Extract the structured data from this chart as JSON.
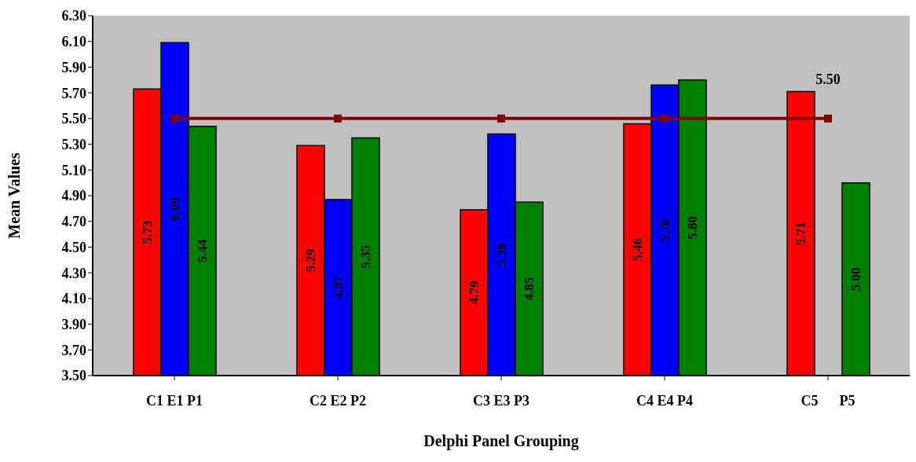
{
  "chart_data": {
    "type": "bar",
    "xlabel": "Delphi Panel Grouping",
    "ylabel": "Mean Values",
    "categories": [
      "C1 E1 P1",
      "C2 E2 P2",
      "C3 E3 P3",
      "C4 E4 P4",
      "C5      P5"
    ],
    "series": [
      {
        "color": "#ff0000",
        "values": [
          5.73,
          5.29,
          4.79,
          5.46,
          5.71
        ],
        "value_labels": [
          "5.73",
          "5.29",
          "4.79",
          "5.46",
          "5.71"
        ]
      },
      {
        "color": "#0000ff",
        "values": [
          6.09,
          4.87,
          5.38,
          5.76,
          null
        ],
        "value_labels": [
          "6.09",
          "4.87",
          "5.38",
          "5.76",
          null
        ]
      },
      {
        "color": "#008000",
        "values": [
          5.44,
          5.35,
          4.85,
          5.8,
          5.0
        ],
        "value_labels": [
          "5.44",
          "5.35",
          "4.85",
          "5.80",
          "5.00"
        ]
      },
      {
        "type": "line",
        "color": "#800000",
        "values": [
          5.5,
          5.5,
          5.5,
          5.5,
          5.5
        ],
        "value_labels": [
          null,
          null,
          null,
          null,
          "5.50"
        ]
      }
    ],
    "marker": "square",
    "line_style": "solid",
    "grid": false,
    "legend": false,
    "ylim": [
      3.5,
      6.3
    ],
    "yticks": [
      {
        "value": 3.5,
        "label": "3.50"
      },
      {
        "value": 3.7,
        "label": "3.70"
      },
      {
        "value": 3.9,
        "label": "3.90"
      },
      {
        "value": 4.1,
        "label": "4.10"
      },
      {
        "value": 4.3,
        "label": "4.30"
      },
      {
        "value": 4.5,
        "label": "4.50"
      },
      {
        "value": 4.7,
        "label": "4.70"
      },
      {
        "value": 4.9,
        "label": "4.90"
      },
      {
        "value": 5.1,
        "label": "5.10"
      },
      {
        "value": 5.3,
        "label": "5.30"
      },
      {
        "value": 5.5,
        "label": "5.50"
      },
      {
        "value": 5.7,
        "label": "5.70"
      },
      {
        "value": 5.9,
        "label": "5.90"
      },
      {
        "value": 6.1,
        "label": "6.10"
      },
      {
        "value": 6.3,
        "label": "6.30"
      }
    ]
  }
}
